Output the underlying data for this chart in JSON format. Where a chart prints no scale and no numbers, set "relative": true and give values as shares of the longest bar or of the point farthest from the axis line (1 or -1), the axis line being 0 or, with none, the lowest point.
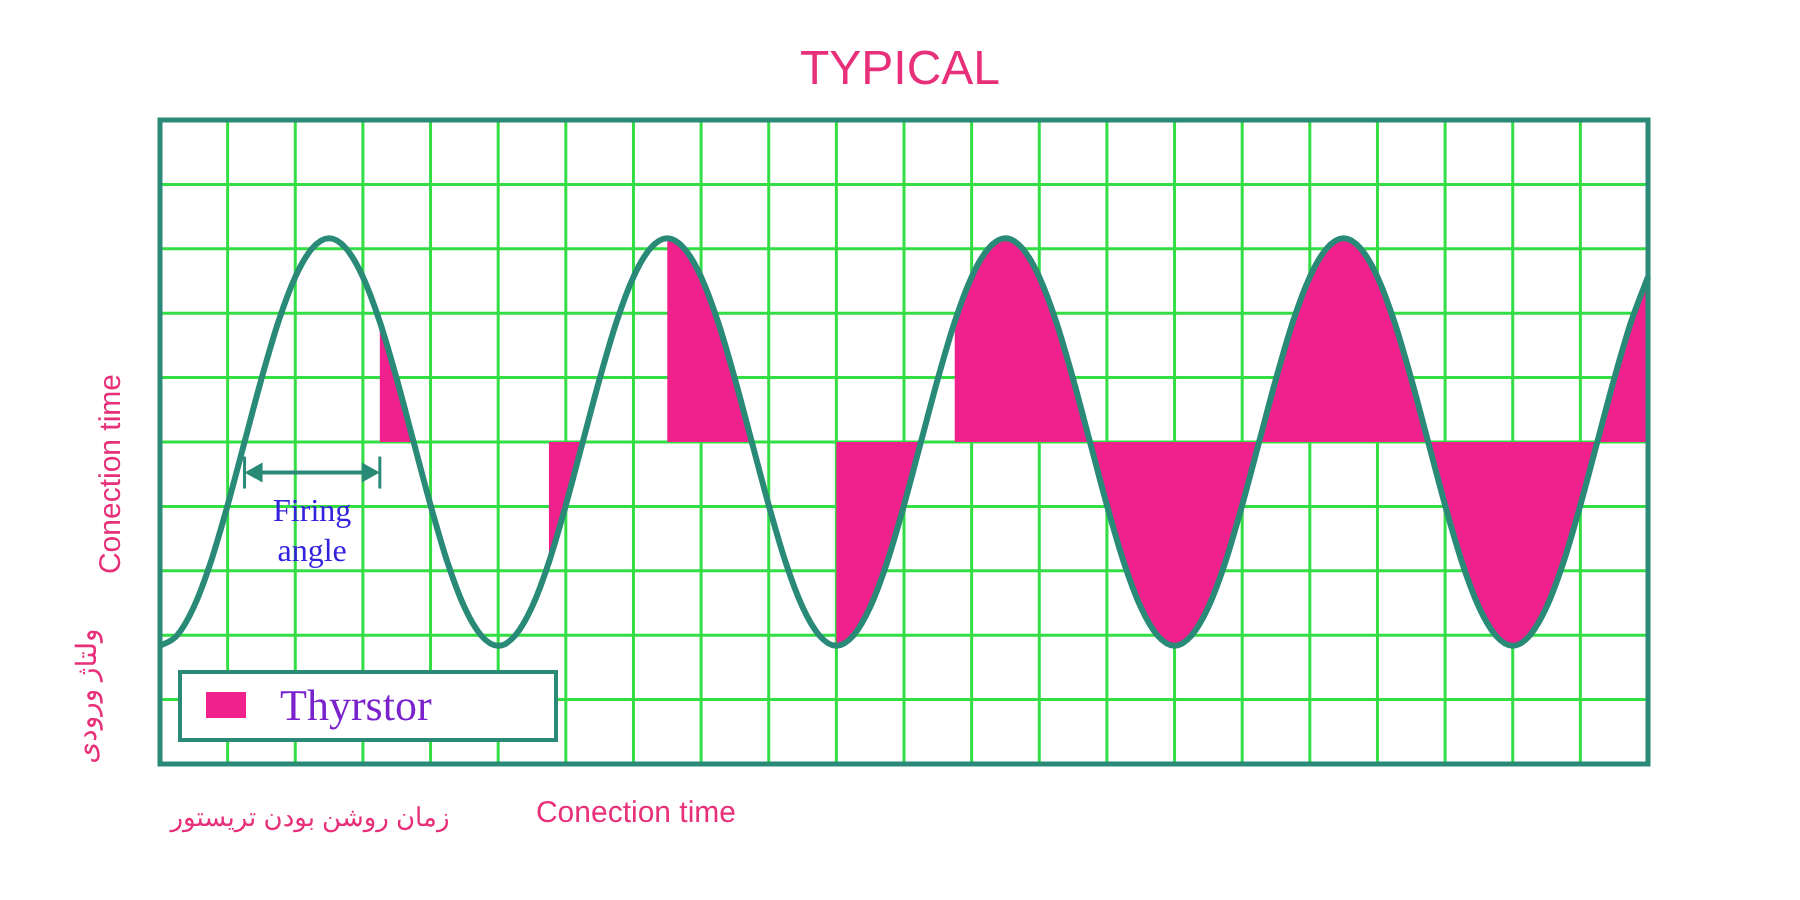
{
  "chart_data": {
    "type": "line",
    "title": "TYPICAL",
    "ylabel": "Conection time",
    "annotations": [
      "Firing angle",
      "ولتاژ ورودی",
      "زمان روشن بودن تریستور",
      "Conection time"
    ],
    "categories": [
      null,
      null,
      null,
      null,
      null,
      null,
      null,
      null,
      null,
      null,
      null,
      null,
      null,
      null,
      null,
      null,
      null,
      null,
      null,
      null,
      null,
      null,
      null,
      null,
      null,
      null,
      null,
      null,
      null,
      null,
      null,
      null,
      null,
      null,
      null,
      null,
      null,
      null,
      null,
      null,
      null,
      null,
      null,
      null,
      null,
      null,
      null,
      null,
      null,
      null,
      null,
      null,
      null,
      null,
      null,
      null,
      null,
      null,
      null,
      null,
      null,
      null,
      null,
      null,
      null,
      null,
      null,
      null,
      null,
      null,
      null,
      null,
      null,
      null,
      null,
      null,
      null,
      null,
      null,
      null,
      null,
      null,
      null,
      null,
      null,
      null,
      null,
      null,
      null
    ],
    "relative": true,
    "grid": true,
    "legend": "bottom left",
    "series": [
      {
        "type": "area",
        "name": "Thyrstor",
        "color": "#f0208c",
        "values": [
          null,
          null,
          null,
          null,
          null,
          null,
          null,
          null,
          null,
          null,
          null,
          null,
          null,
          0.59,
          0.31,
          0,
          null,
          null,
          null,
          null,
          null,
          null,
          null,
          -0.59,
          -0.31,
          0,
          null,
          null,
          null,
          null,
          1,
          0.95,
          0.81,
          0.59,
          0.31,
          0,
          null,
          null,
          null,
          null,
          -1,
          -0.95,
          -0.81,
          -0.59,
          -0.31,
          0,
          null,
          0.59,
          0.81,
          0.95,
          1,
          0.95,
          0.81,
          0.59,
          0.31,
          0,
          -0.31,
          -0.59,
          -0.81,
          -0.95,
          -1,
          -0.95,
          -0.81,
          -0.59,
          -0.31,
          0,
          0.31,
          0.59,
          0.81,
          0.95,
          1,
          0.95,
          0.81,
          0.59,
          0.31,
          0,
          -0.31,
          -0.59,
          -0.81,
          -0.95,
          -1,
          -0.95,
          -0.81,
          -0.59,
          -0.31,
          0,
          0.31,
          0.59,
          0.81
        ]
      },
      {
        "type": "line",
        "color": "#2a8a78",
        "values": [
          -1,
          -0.95,
          -0.81,
          -0.59,
          -0.31,
          0,
          0.31,
          0.59,
          0.81,
          0.95,
          1,
          0.95,
          0.81,
          0.59,
          0.31,
          0,
          -0.31,
          -0.59,
          -0.81,
          -0.95,
          -1,
          -0.95,
          -0.81,
          -0.59,
          -0.31,
          0,
          0.31,
          0.59,
          0.81,
          0.95,
          1,
          0.95,
          0.81,
          0.59,
          0.31,
          0,
          -0.31,
          -0.59,
          -0.81,
          -0.95,
          -1,
          -0.95,
          -0.81,
          -0.59,
          -0.31,
          0,
          0.31,
          0.59,
          0.81,
          0.95,
          1,
          0.95,
          0.81,
          0.59,
          0.31,
          0,
          -0.31,
          -0.59,
          -0.81,
          -0.95,
          -1,
          -0.95,
          -0.81,
          -0.59,
          -0.31,
          0,
          0.31,
          0.59,
          0.81,
          0.95,
          1,
          0.95,
          0.81,
          0.59,
          0.31,
          0,
          -0.31,
          -0.59,
          -0.81,
          -0.95,
          -1,
          -0.95,
          -0.81,
          -0.59,
          -0.31,
          0,
          0.31,
          0.59,
          0.81
        ]
      }
    ]
  }
}
